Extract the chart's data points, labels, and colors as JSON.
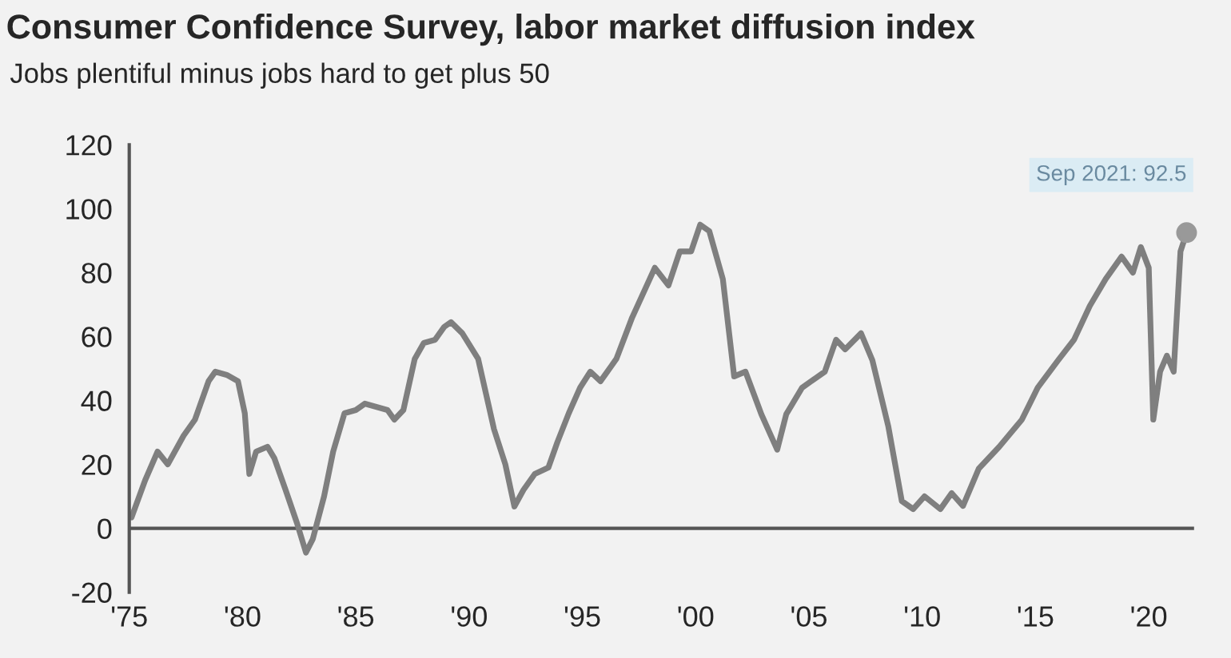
{
  "chart_data": {
    "type": "line",
    "title": "Consumer Confidence Survey, labor market diffusion index",
    "subtitle": "Jobs plentiful minus jobs hard to get plus 50",
    "xlim": [
      1975,
      2022
    ],
    "xticks": [
      {
        "value": 1975,
        "label": "'75"
      },
      {
        "value": 1980,
        "label": "'80"
      },
      {
        "value": 1985,
        "label": "'85"
      },
      {
        "value": 1990,
        "label": "'90"
      },
      {
        "value": 1995,
        "label": "'95"
      },
      {
        "value": 2000,
        "label": "'00"
      },
      {
        "value": 2005,
        "label": "'05"
      },
      {
        "value": 2010,
        "label": "'10"
      },
      {
        "value": 2015,
        "label": "'15"
      },
      {
        "value": 2020,
        "label": "'20"
      }
    ],
    "ylim": [
      -20,
      120
    ],
    "yticks": [
      -20,
      0,
      20,
      40,
      60,
      80,
      100,
      120
    ],
    "grid": false,
    "legend": false,
    "ref_lines": [
      {
        "axis": "y",
        "value": 0,
        "color": "#555555"
      }
    ],
    "annotations": [
      {
        "text": "Sep 2021: 92.5",
        "x": 2021.67,
        "y": 92.5
      }
    ],
    "series": [
      {
        "type": "line",
        "color": "#7f7f7f",
        "marker": "none",
        "x": [
          1975.1,
          1975.7,
          1976.25,
          1976.7,
          1977.4,
          1977.9,
          1978.5,
          1978.8,
          1979.3,
          1979.8,
          1980.1,
          1980.3,
          1980.6,
          1981.1,
          1981.4,
          1981.9,
          1982.4,
          1982.8,
          1983.1,
          1983.6,
          1984.0,
          1984.5,
          1985.0,
          1985.4,
          1985.9,
          1986.4,
          1986.7,
          1987.1,
          1987.6,
          1988.0,
          1988.5,
          1988.9,
          1989.2,
          1989.7,
          1990.4,
          1990.75,
          1991.1,
          1991.6,
          1992.0,
          1992.4,
          1992.9,
          1993.5,
          1993.9,
          1994.4,
          1994.9,
          1995.35,
          1995.8,
          1996.5,
          1997.2,
          1998.2,
          1998.8,
          1999.3,
          1999.8,
          2000.2,
          2000.6,
          2001.2,
          2001.7,
          2002.2,
          2002.9,
          2003.6,
          2004.0,
          2004.7,
          2005.7,
          2006.2,
          2006.6,
          2007.3,
          2007.8,
          2008.5,
          2009.1,
          2009.6,
          2010.1,
          2010.8,
          2011.3,
          2011.8,
          2012.5,
          2013.4,
          2014.4,
          2015.1,
          2016.0,
          2016.7,
          2017.4,
          2018.1,
          2018.8,
          2019.3,
          2019.65,
          2020.0,
          2020.2,
          2020.5,
          2020.8,
          2021.1,
          2021.4,
          2021.67
        ],
        "values": [
          3.4,
          15,
          24,
          20,
          29,
          34,
          46,
          49,
          48,
          46,
          36,
          17,
          24,
          25.5,
          22,
          12,
          1.7,
          -7.6,
          -3.4,
          10,
          24,
          36,
          37,
          39,
          38,
          37,
          34,
          37,
          53,
          58,
          59,
          63,
          64.5,
          61,
          53,
          42,
          31,
          20,
          6.8,
          12,
          17,
          19,
          27,
          36,
          44,
          49,
          46,
          53,
          66,
          81.5,
          76,
          86.6,
          86.6,
          95,
          93,
          78,
          47.5,
          49,
          35.7,
          24.6,
          35.7,
          44,
          49,
          59,
          56,
          61,
          52.6,
          32,
          8.5,
          6,
          10,
          6,
          11,
          7,
          18.7,
          25.5,
          34,
          44,
          52.6,
          59,
          69.6,
          78,
          85,
          80,
          88,
          81.5,
          34,
          49,
          54,
          49,
          86.6,
          92.5
        ]
      },
      {
        "type": "scatter",
        "color": "#999999",
        "marker": "circle",
        "x": [
          2021.67
        ],
        "values": [
          92.5
        ]
      }
    ]
  }
}
